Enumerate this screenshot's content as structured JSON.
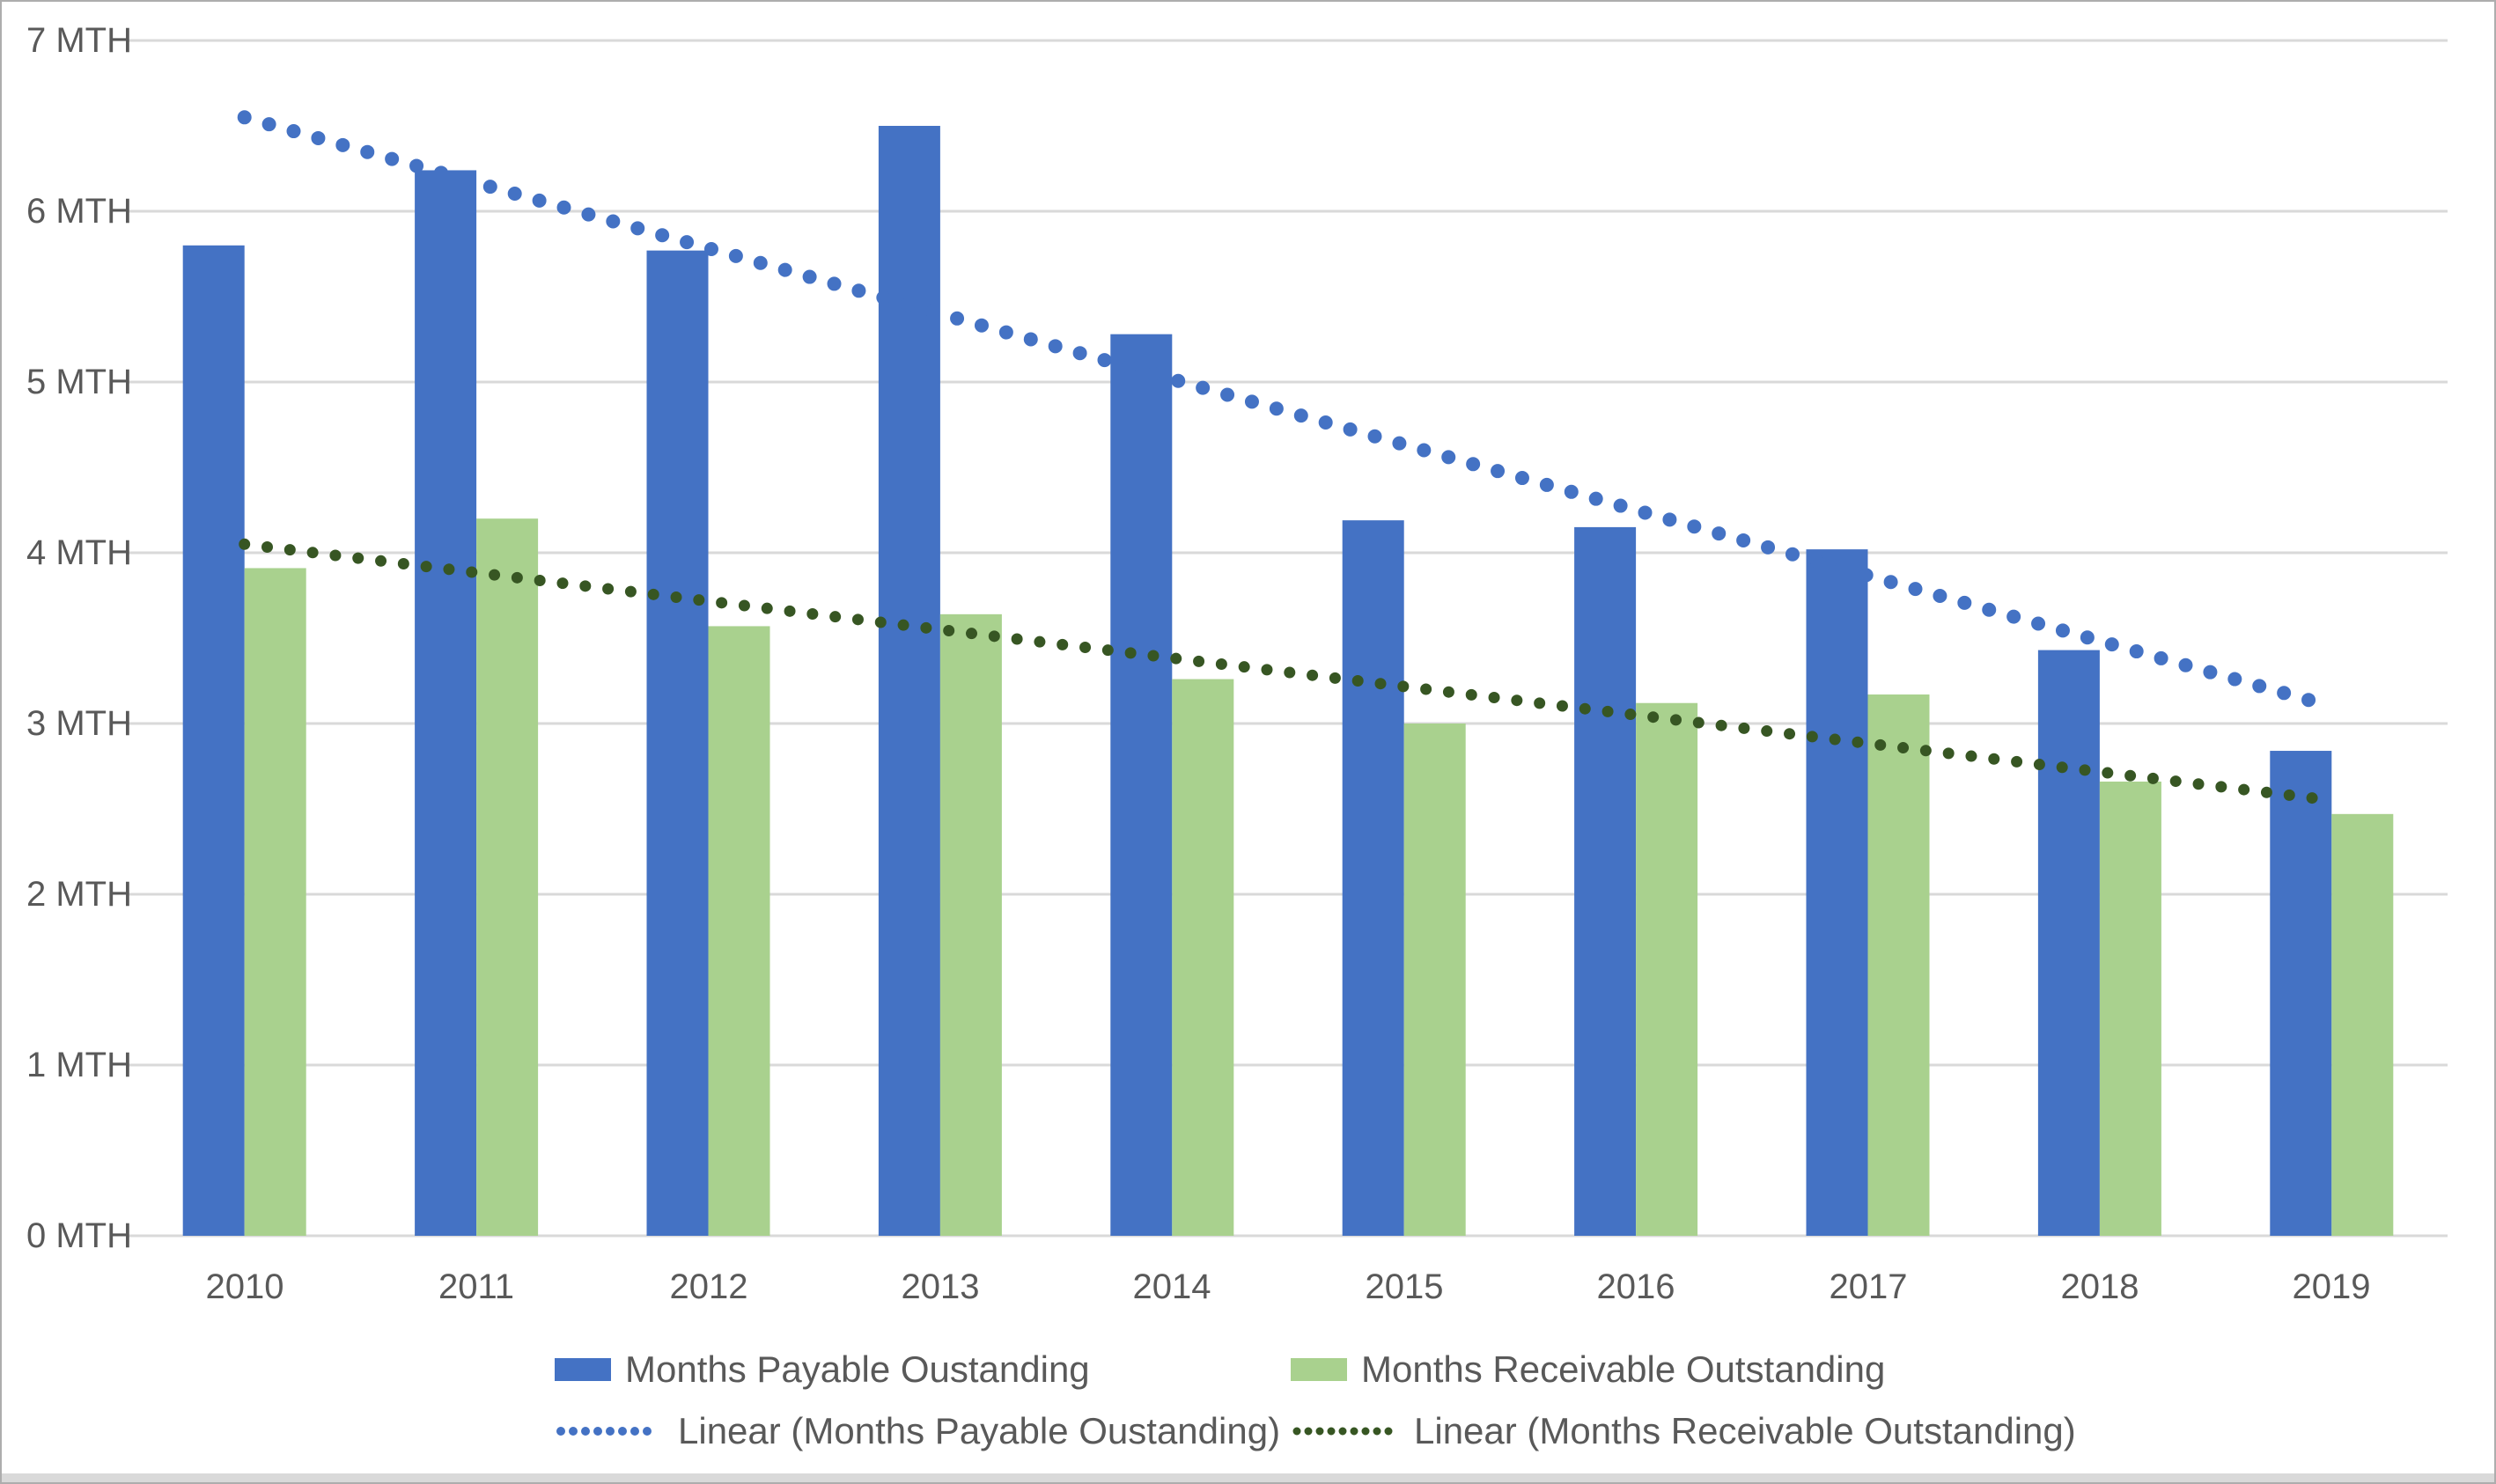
{
  "chart_data": {
    "type": "bar",
    "title": "",
    "categories": [
      "2010",
      "2011",
      "2012",
      "2013",
      "2014",
      "2015",
      "2016",
      "2017",
      "2018",
      "2019"
    ],
    "y_axis": {
      "min": 0,
      "max": 7,
      "tick_step": 1,
      "tick_suffix": " MTH",
      "tick_labels": [
        "0 MTH",
        "1 MTH",
        "2 MTH",
        "3 MTH",
        "4 MTH",
        "5 MTH",
        "6 MTH",
        "7 MTH"
      ]
    },
    "series": [
      {
        "name": "Months Payable Oustanding",
        "color": "#4472C4",
        "values": [
          5.8,
          6.24,
          5.77,
          6.5,
          5.28,
          4.19,
          4.15,
          4.02,
          3.43,
          2.84
        ]
      },
      {
        "name": "Months Receivable Outstanding",
        "color": "#A9D18E",
        "values": [
          3.91,
          4.2,
          3.57,
          3.64,
          3.26,
          3.0,
          3.12,
          3.17,
          2.66,
          2.47
        ]
      }
    ],
    "trendlines": [
      {
        "name": "Linear (Months Payable Oustanding)",
        "color": "#4472C4",
        "style": "dotted",
        "start_value": 6.55,
        "end_value": 3.1
      },
      {
        "name": "Linear (Months Receivable Outstanding)",
        "color": "#375623",
        "style": "dotted",
        "start_value": 4.05,
        "end_value": 2.55
      }
    ],
    "grid": true,
    "gridline_color": "#D9D9D9",
    "axis_text_color": "#595959",
    "legend_position": "bottom",
    "background_color": "#FFFFFF",
    "border_color": "#ADADAD"
  }
}
